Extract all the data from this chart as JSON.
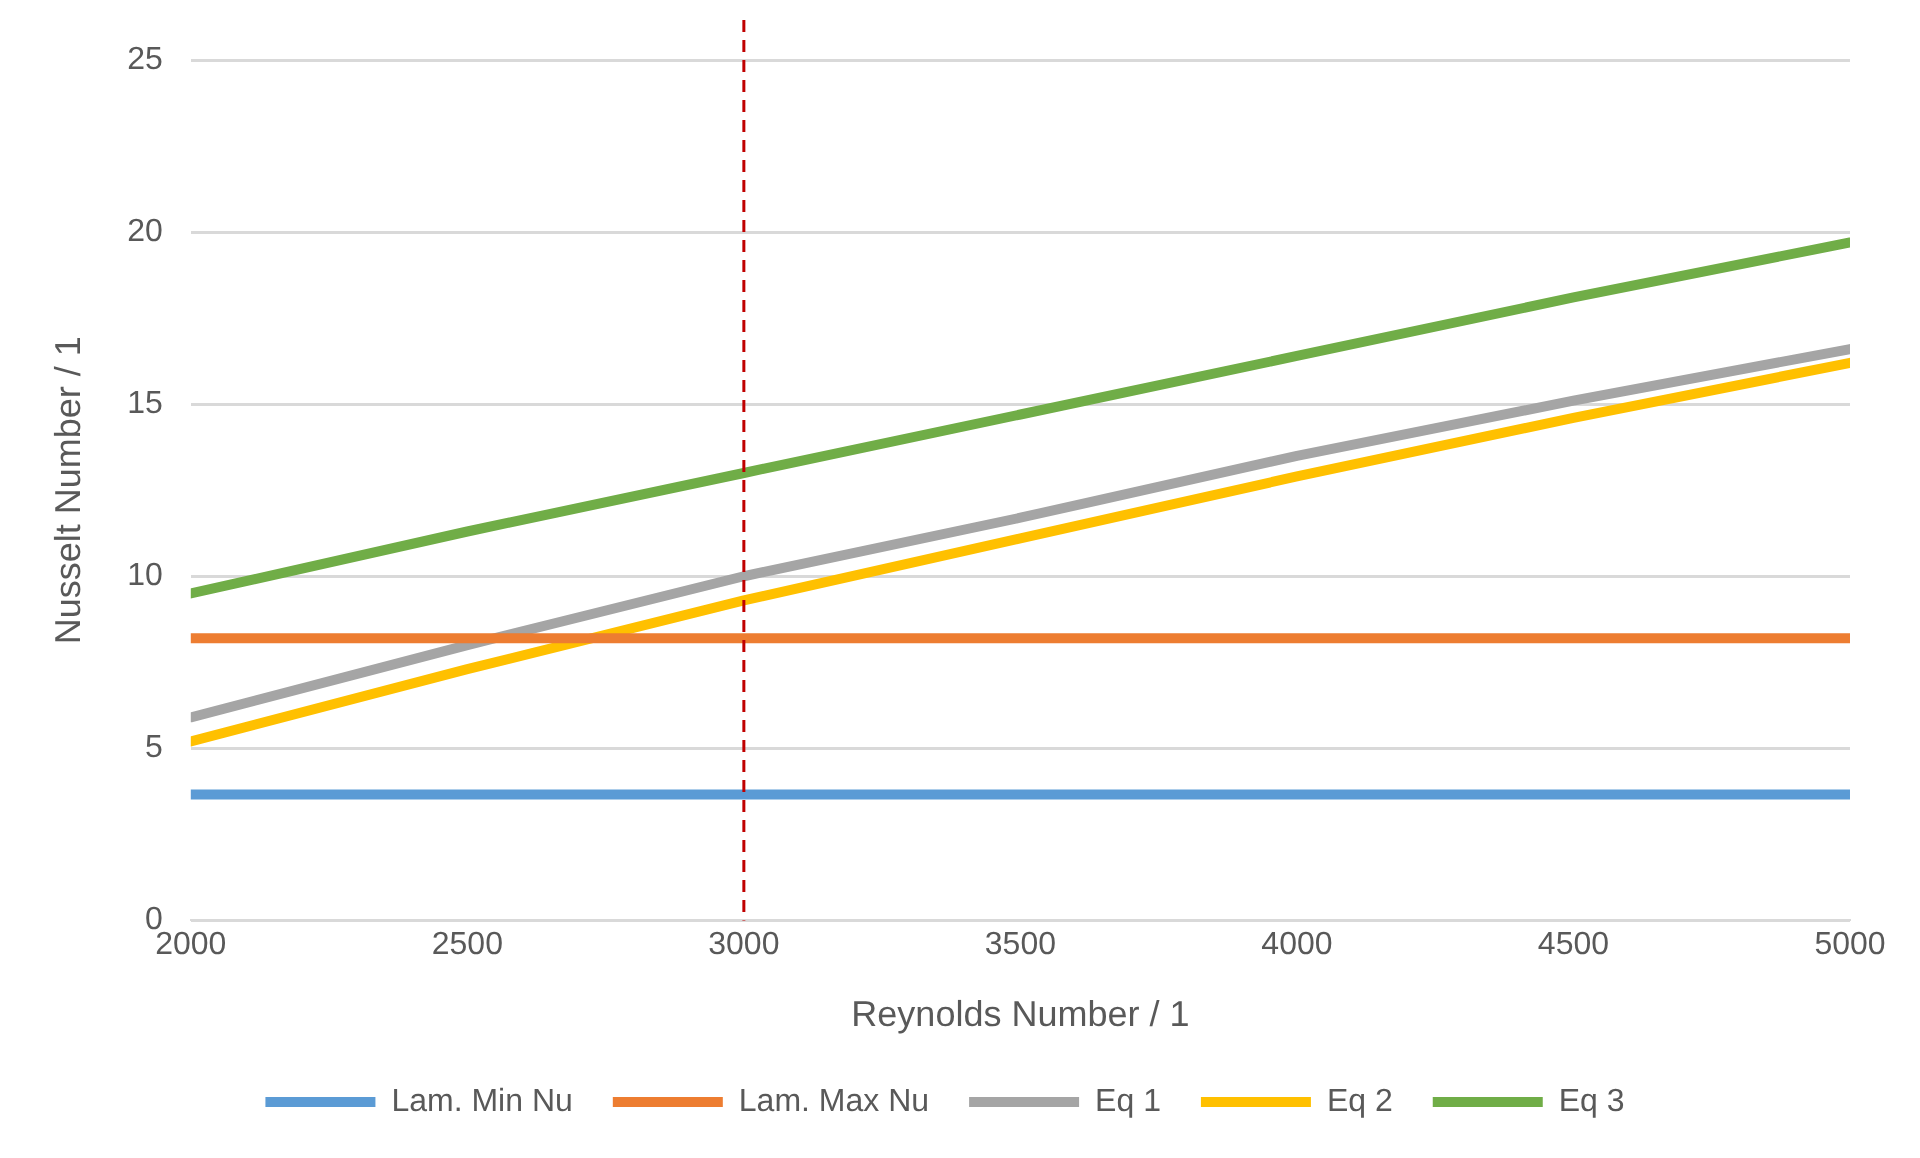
{
  "chart_data": {
    "type": "line",
    "xlabel": "Reynolds Number / 1",
    "ylabel": "Nusselt Number / 1",
    "x": [
      2000,
      2500,
      3000,
      3500,
      4000,
      4500,
      5000
    ],
    "xlim": [
      2000,
      5000
    ],
    "xticks": [
      2000,
      2500,
      3000,
      3500,
      4000,
      4500,
      5000
    ],
    "ylim": [
      0,
      25
    ],
    "yticks": [
      0,
      5,
      10,
      15,
      20,
      25
    ],
    "grid": "y",
    "legend": "bottom",
    "marker": "none",
    "line_style": "solid",
    "ref_lines": [
      {
        "axis": "x",
        "value": 3000,
        "label": null,
        "color": "#c00000",
        "line_style": "dashed"
      }
    ],
    "series": [
      {
        "name": "Lam. Min Nu",
        "color": "#5b9bd5",
        "values": [
          3.66,
          3.66,
          3.66,
          3.66,
          3.66,
          3.66,
          3.66
        ]
      },
      {
        "name": "Lam. Max Nu",
        "color": "#ed7d31",
        "values": [
          8.2,
          8.2,
          8.2,
          8.2,
          8.2,
          8.2,
          8.2
        ]
      },
      {
        "name": "Eq 1",
        "color": "#a5a5a5",
        "values": [
          5.9,
          8.0,
          10.0,
          11.7,
          13.5,
          15.1,
          16.6
        ]
      },
      {
        "name": "Eq 2",
        "color": "#ffc000",
        "values": [
          5.2,
          7.3,
          9.3,
          11.1,
          12.9,
          14.6,
          16.2
        ]
      },
      {
        "name": "Eq 3",
        "color": "#70ad47",
        "values": [
          9.5,
          11.3,
          13.0,
          14.7,
          16.4,
          18.1,
          19.7
        ]
      }
    ]
  }
}
